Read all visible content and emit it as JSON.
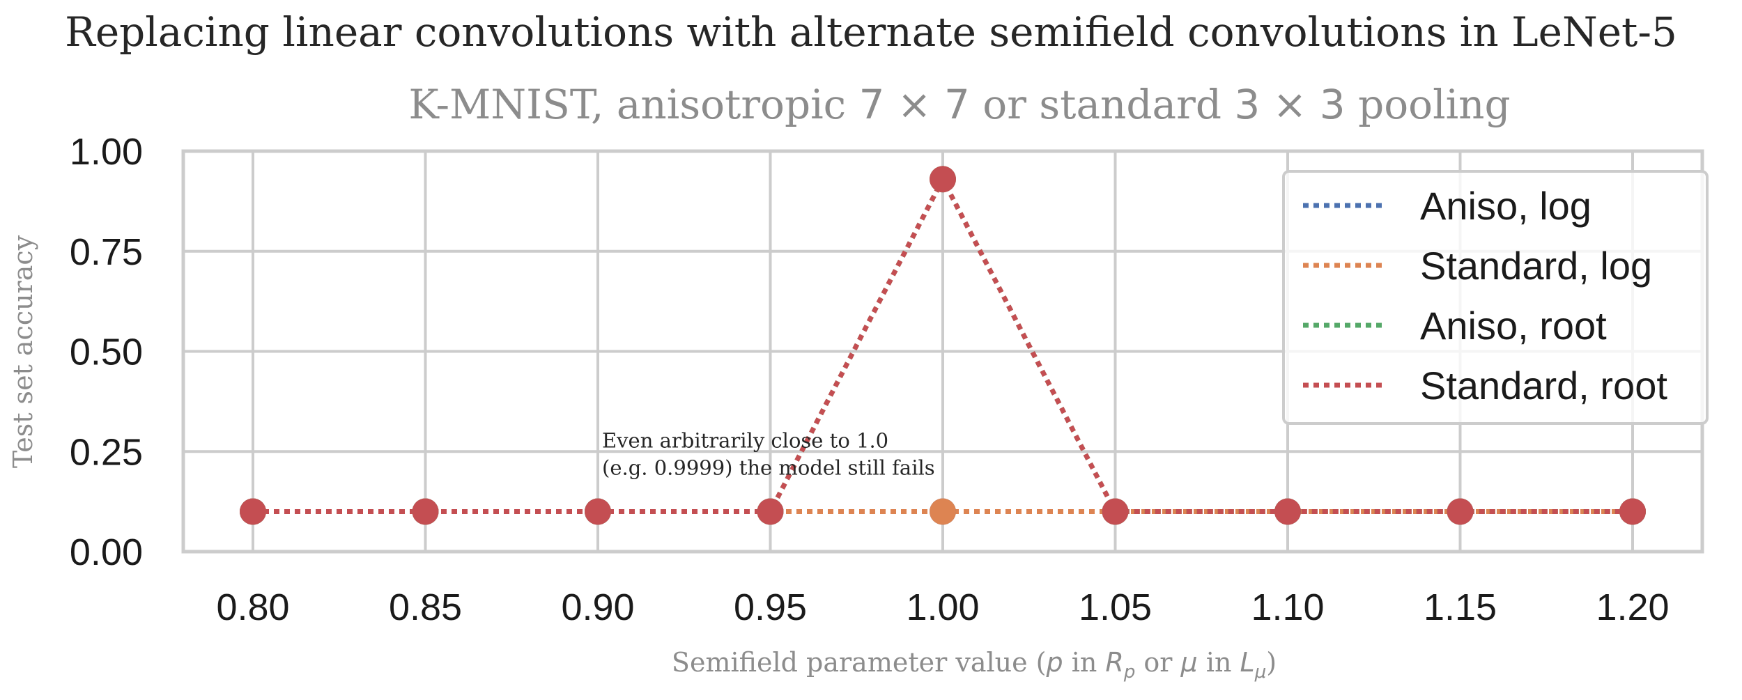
{
  "chart_data": {
    "type": "line",
    "title": "Replacing linear convolutions with alternate semifield convolutions in LeNet-5",
    "subtitle": {
      "prefix": "K-MNIST, anisotropic ",
      "math1": "7 × 7",
      "middle": " or standard ",
      "math2": "3 × 3",
      "suffix": " pooling"
    },
    "xlabel": {
      "prefix": "Semifield parameter value (",
      "p": "p",
      "in1": " in ",
      "Rp_base": "R",
      "Rp_sub": "p",
      "or": " or ",
      "mu": "μ",
      "in2": " in ",
      "Lmu_base": "L",
      "Lmu_sub": "μ",
      "suffix": ")"
    },
    "ylabel": "Test set accuracy",
    "xlim": [
      0.78,
      1.22
    ],
    "ylim": [
      0.0,
      1.0
    ],
    "x_ticks": [
      "0.80",
      "0.85",
      "0.90",
      "0.95",
      "1.00",
      "1.05",
      "1.10",
      "1.15",
      "1.20"
    ],
    "y_ticks": [
      "0.00",
      "0.25",
      "0.50",
      "0.75",
      "1.00"
    ],
    "x": [
      0.8,
      0.85,
      0.9,
      0.95,
      1.0,
      1.05,
      1.1,
      1.15,
      1.2
    ],
    "grid": true,
    "legend_position": "top-right",
    "series": [
      {
        "name": "Aniso, log",
        "color": "#4c72b0",
        "values": [
          0.1,
          0.1,
          0.1,
          0.1,
          0.1,
          0.1,
          0.1,
          0.1,
          0.1
        ]
      },
      {
        "name": "Standard, log",
        "color": "#dd8452",
        "values": [
          0.1,
          0.1,
          0.1,
          0.1,
          0.1,
          0.1,
          0.1,
          0.1,
          0.1
        ]
      },
      {
        "name": "Aniso, root",
        "color": "#55a868",
        "values": [
          0.1,
          0.1,
          0.1,
          0.1,
          0.93,
          0.1,
          0.1,
          0.1,
          0.1
        ]
      },
      {
        "name": "Standard, root",
        "color": "#c44e52",
        "values": [
          0.1,
          0.1,
          0.1,
          0.1,
          0.93,
          0.1,
          0.1,
          0.1,
          0.1
        ]
      }
    ],
    "annotation": {
      "line1": "Even arbitrarily close to 1.0",
      "line2": "(e.g. 0.9999) the model still fails",
      "x": 0.9,
      "y": 0.25
    }
  }
}
